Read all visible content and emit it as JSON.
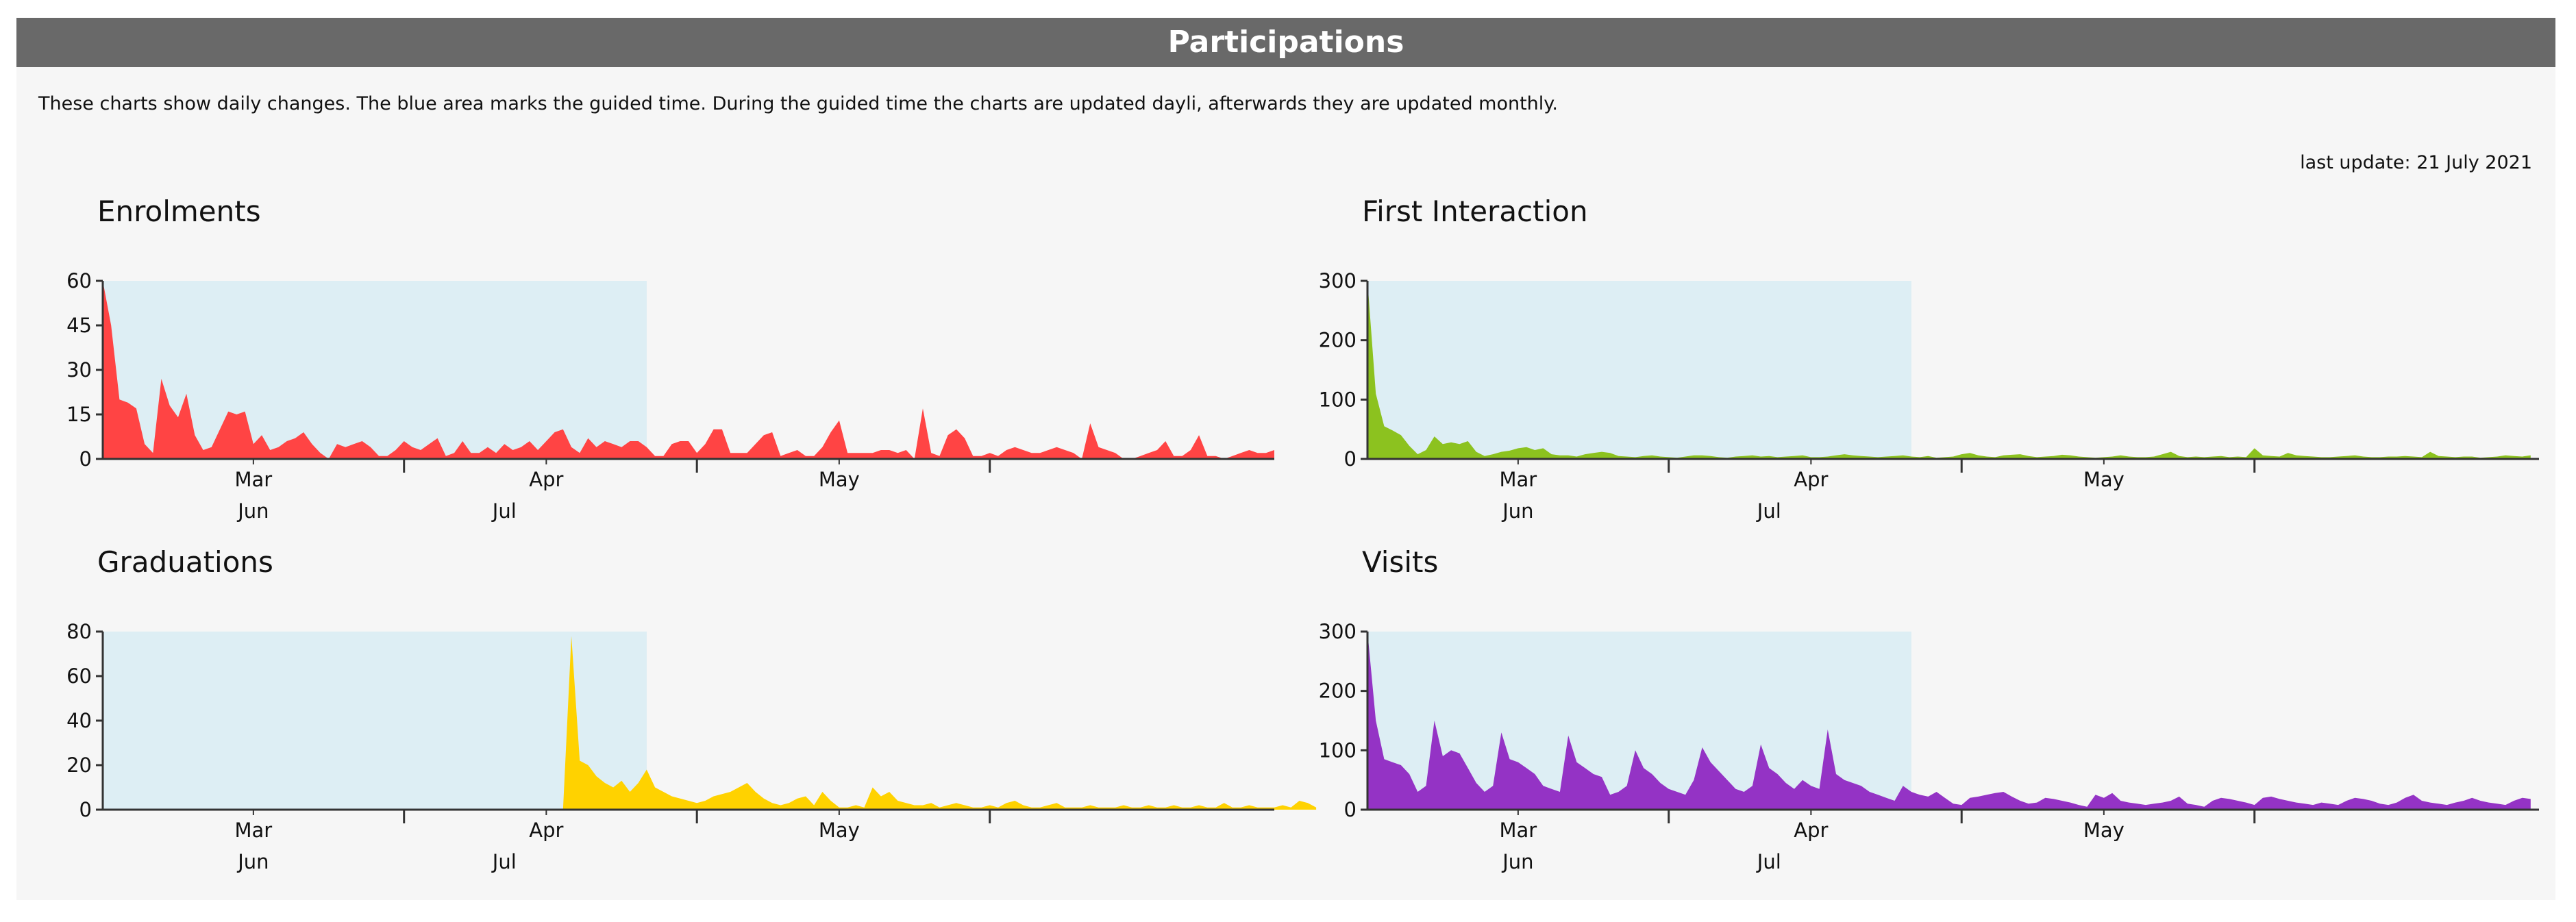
{
  "page": {
    "title": "Participations",
    "description": "These charts show daily changes. The blue area marks the guided time. During the guided time the charts are updated dayli, afterwards they are updated monthly.",
    "last_update": "last update: 21 July 2021"
  },
  "colors": {
    "header_bg": "#696969",
    "guided_area": "#ddeef4",
    "enrolments": "#ff4444",
    "first_interaction": "#8cc21f",
    "graduations": "#ffd200",
    "visits": "#9433c5"
  },
  "chart_data": [
    {
      "id": "enrolments",
      "type": "area",
      "title": "Enrolments",
      "color": "#ff4444",
      "ylim": [
        0,
        60
      ],
      "yticks": [
        "0",
        "15",
        "30",
        "45",
        "60"
      ],
      "yticks_values": [
        0,
        15,
        30,
        45,
        60
      ],
      "xlim": [
        0,
        140
      ],
      "guided_end_day": 65,
      "month_ticks": [
        {
          "label": "Mar",
          "day": 18
        },
        {
          "label": "Apr",
          "day": 53
        },
        {
          "label": "May",
          "day": 88
        }
      ],
      "month_ticks_row2": [
        {
          "label": "Jun",
          "day": 18
        },
        {
          "label": "Jul",
          "day": 48
        }
      ],
      "week_marks": [
        36,
        71,
        106
      ],
      "values": [
        60,
        45,
        20,
        19,
        17,
        5,
        2,
        27,
        18,
        14,
        22,
        8,
        3,
        4,
        10,
        16,
        15,
        16,
        5,
        8,
        3,
        4,
        6,
        7,
        9,
        5,
        2,
        0,
        5,
        4,
        5,
        6,
        4,
        1,
        1,
        3,
        6,
        4,
        3,
        5,
        7,
        1,
        2,
        6,
        2,
        2,
        4,
        2,
        5,
        3,
        4,
        6,
        3,
        6,
        9,
        10,
        4,
        2,
        7,
        4,
        6,
        5,
        4,
        6,
        6,
        4,
        1,
        1,
        5,
        6,
        6,
        2,
        5,
        10,
        10,
        2,
        2,
        2,
        5,
        8,
        9,
        1,
        2,
        3,
        1,
        1,
        4,
        9,
        13,
        2,
        2,
        2,
        2,
        3,
        3,
        2,
        3,
        0,
        17,
        2,
        1,
        8,
        10,
        7,
        1,
        1,
        2,
        1,
        3,
        4,
        3,
        2,
        2,
        3,
        4,
        3,
        2,
        0,
        12,
        4,
        3,
        2,
        0,
        0,
        1,
        2,
        3,
        6,
        1,
        1,
        3,
        8,
        1,
        1,
        0,
        1,
        2,
        3,
        2,
        2,
        3
      ]
    },
    {
      "id": "first_interaction",
      "type": "area",
      "title": "First Interaction",
      "color": "#8cc21f",
      "ylim": [
        0,
        300
      ],
      "yticks": [
        "0",
        "100",
        "200",
        "300"
      ],
      "yticks_values": [
        0,
        100,
        200,
        300
      ],
      "xlim": [
        0,
        140
      ],
      "guided_end_day": 65,
      "month_ticks": [
        {
          "label": "Mar",
          "day": 18
        },
        {
          "label": "Apr",
          "day": 53
        },
        {
          "label": "May",
          "day": 88
        }
      ],
      "month_ticks_row2": [
        {
          "label": "Jun",
          "day": 18
        },
        {
          "label": "Jul",
          "day": 48
        }
      ],
      "week_marks": [
        36,
        71,
        106
      ],
      "values": [
        300,
        110,
        55,
        48,
        40,
        22,
        8,
        15,
        38,
        25,
        28,
        25,
        30,
        12,
        5,
        8,
        12,
        14,
        18,
        20,
        15,
        18,
        8,
        6,
        6,
        4,
        8,
        10,
        12,
        10,
        5,
        4,
        3,
        5,
        6,
        4,
        3,
        2,
        4,
        6,
        6,
        5,
        3,
        2,
        4,
        5,
        6,
        4,
        5,
        3,
        4,
        5,
        6,
        3,
        3,
        4,
        6,
        8,
        6,
        5,
        4,
        3,
        4,
        5,
        6,
        4,
        3,
        5,
        2,
        3,
        4,
        8,
        10,
        6,
        4,
        3,
        6,
        7,
        8,
        5,
        3,
        4,
        5,
        7,
        6,
        4,
        3,
        2,
        3,
        4,
        6,
        4,
        3,
        3,
        4,
        8,
        12,
        5,
        3,
        4,
        3,
        4,
        5,
        3,
        4,
        3,
        18,
        6,
        5,
        4,
        10,
        6,
        5,
        4,
        3,
        3,
        4,
        5,
        6,
        4,
        3,
        3,
        4,
        4,
        5,
        4,
        3,
        12,
        5,
        4,
        3,
        4,
        4,
        2,
        3,
        4,
        6,
        5,
        4,
        6
      ]
    },
    {
      "id": "graduations",
      "type": "area",
      "title": "Graduations",
      "color": "#ffd200",
      "ylim": [
        0,
        80
      ],
      "yticks": [
        "0",
        "20",
        "40",
        "60",
        "80"
      ],
      "yticks_values": [
        0,
        20,
        40,
        60,
        80
      ],
      "xlim": [
        0,
        140
      ],
      "guided_end_day": 65,
      "month_ticks": [
        {
          "label": "Mar",
          "day": 18
        },
        {
          "label": "Apr",
          "day": 53
        },
        {
          "label": "May",
          "day": 88
        }
      ],
      "month_ticks_row2": [
        {
          "label": "Jun",
          "day": 18
        },
        {
          "label": "Jul",
          "day": 48
        }
      ],
      "week_marks": [
        36,
        71,
        106
      ],
      "values": [
        0,
        0,
        0,
        0,
        0,
        0,
        0,
        0,
        0,
        0,
        0,
        0,
        0,
        0,
        0,
        0,
        0,
        0,
        0,
        0,
        0,
        0,
        0,
        0,
        0,
        0,
        0,
        0,
        0,
        0,
        0,
        0,
        0,
        0,
        0,
        0,
        0,
        0,
        0,
        0,
        0,
        0,
        0,
        0,
        0,
        0,
        0,
        0,
        0,
        0,
        0,
        0,
        0,
        0,
        0,
        0,
        78,
        22,
        20,
        15,
        12,
        10,
        13,
        8,
        12,
        18,
        10,
        8,
        6,
        5,
        4,
        3,
        4,
        6,
        7,
        8,
        10,
        12,
        8,
        5,
        3,
        2,
        3,
        5,
        6,
        2,
        8,
        4,
        1,
        1,
        2,
        1,
        10,
        6,
        8,
        4,
        3,
        2,
        2,
        3,
        1,
        2,
        3,
        2,
        1,
        1,
        2,
        1,
        3,
        4,
        2,
        1,
        1,
        2,
        3,
        1,
        1,
        1,
        2,
        1,
        1,
        1,
        2,
        1,
        1,
        2,
        1,
        1,
        2,
        1,
        1,
        2,
        1,
        1,
        3,
        1,
        1,
        2,
        1,
        1,
        1,
        2,
        1,
        4,
        3,
        1
      ]
    },
    {
      "id": "visits",
      "type": "area",
      "title": "Visits",
      "color": "#9433c5",
      "ylim": [
        0,
        300
      ],
      "yticks": [
        "0",
        "100",
        "200",
        "300"
      ],
      "yticks_values": [
        0,
        100,
        200,
        300
      ],
      "xlim": [
        0,
        140
      ],
      "guided_end_day": 65,
      "month_ticks": [
        {
          "label": "Mar",
          "day": 18
        },
        {
          "label": "Apr",
          "day": 53
        },
        {
          "label": "May",
          "day": 88
        }
      ],
      "month_ticks_row2": [
        {
          "label": "Jun",
          "day": 18
        },
        {
          "label": "Jul",
          "day": 48
        }
      ],
      "week_marks": [
        36,
        71,
        106
      ],
      "values": [
        300,
        150,
        85,
        80,
        75,
        60,
        30,
        40,
        150,
        90,
        100,
        95,
        70,
        45,
        30,
        40,
        130,
        85,
        80,
        70,
        60,
        40,
        35,
        30,
        125,
        80,
        70,
        60,
        55,
        25,
        30,
        40,
        100,
        70,
        60,
        45,
        35,
        30,
        25,
        50,
        105,
        80,
        65,
        50,
        35,
        30,
        40,
        110,
        70,
        60,
        45,
        35,
        50,
        40,
        35,
        135,
        60,
        50,
        45,
        40,
        30,
        25,
        20,
        15,
        40,
        30,
        25,
        22,
        30,
        20,
        10,
        8,
        20,
        22,
        25,
        28,
        30,
        22,
        15,
        10,
        12,
        20,
        18,
        15,
        12,
        8,
        5,
        25,
        20,
        28,
        15,
        12,
        10,
        8,
        10,
        12,
        15,
        22,
        10,
        8,
        5,
        15,
        20,
        18,
        15,
        12,
        8,
        20,
        22,
        18,
        15,
        12,
        10,
        8,
        12,
        10,
        8,
        15,
        20,
        18,
        15,
        10,
        8,
        12,
        20,
        25,
        15,
        12,
        10,
        8,
        12,
        15,
        20,
        15,
        12,
        10,
        8,
        15,
        20,
        18
      ]
    }
  ]
}
